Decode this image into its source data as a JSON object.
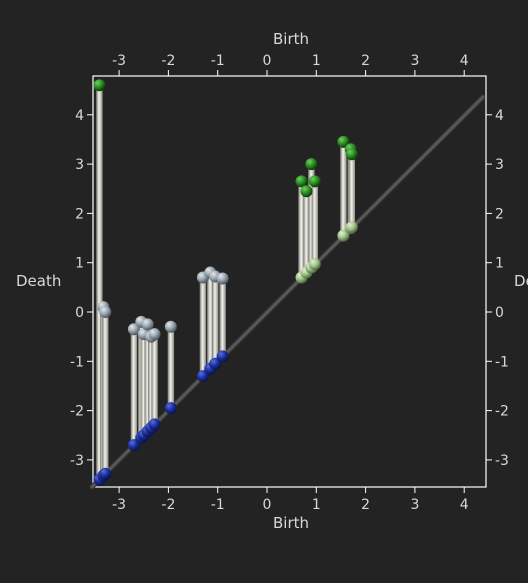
{
  "chart_data": {
    "type": "scatter",
    "subtype": "persistence-diagram",
    "xlabel": "Birth",
    "ylabel": "Death",
    "xlim": [
      -3.5,
      4.4
    ],
    "ylim": [
      -3.5,
      4.8
    ],
    "xticks": [
      -3,
      -2,
      -1,
      0,
      1,
      2,
      3,
      4
    ],
    "yticks": [
      -3,
      -2,
      -1,
      0,
      1,
      2,
      3,
      4
    ],
    "grid": false,
    "diagonal": true,
    "colors": {
      "background": "#232323",
      "frame": "#ffffff",
      "diagonal": "#5a5a5a",
      "bar": "#d9d9d2",
      "birth_point": "#1a2f9a",
      "death_dim0": "#97a3ad",
      "death_dim1": "#2a8a22",
      "birth_dim1": "#9fbf8a"
    },
    "series": [
      {
        "dimension": 0,
        "pairs": [
          {
            "birth": -3.4,
            "death": 4.6
          },
          {
            "birth": -3.32,
            "death": 0.1
          },
          {
            "birth": -3.28,
            "death": 0.0
          },
          {
            "birth": -2.7,
            "death": -0.35
          },
          {
            "birth": -2.55,
            "death": -0.2
          },
          {
            "birth": -2.5,
            "death": -0.45
          },
          {
            "birth": -2.42,
            "death": -0.25
          },
          {
            "birth": -2.35,
            "death": -0.5
          },
          {
            "birth": -2.28,
            "death": -0.45
          },
          {
            "birth": -1.95,
            "death": -0.3
          },
          {
            "birth": -1.3,
            "death": 0.7
          },
          {
            "birth": -1.15,
            "death": 0.8
          },
          {
            "birth": -1.05,
            "death": 0.72
          },
          {
            "birth": -0.9,
            "death": 0.68
          }
        ]
      },
      {
        "dimension": 1,
        "pairs": [
          {
            "birth": 0.7,
            "death": 2.65
          },
          {
            "birth": 0.8,
            "death": 2.45
          },
          {
            "birth": 0.9,
            "death": 3.0
          },
          {
            "birth": 0.97,
            "death": 2.65
          },
          {
            "birth": 1.55,
            "death": 3.45
          },
          {
            "birth": 1.7,
            "death": 3.3
          },
          {
            "birth": 1.72,
            "death": 3.2
          }
        ]
      }
    ]
  }
}
